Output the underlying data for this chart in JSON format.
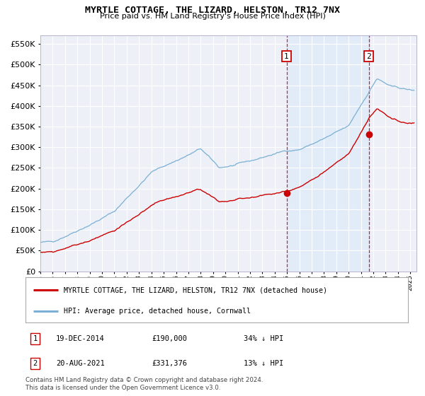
{
  "title": "MYRTLE COTTAGE, THE LIZARD, HELSTON, TR12 7NX",
  "subtitle": "Price paid vs. HM Land Registry's House Price Index (HPI)",
  "legend_line1": "MYRTLE COTTAGE, THE LIZARD, HELSTON, TR12 7NX (detached house)",
  "legend_line2": "HPI: Average price, detached house, Cornwall",
  "sale1_date": "19-DEC-2014",
  "sale1_price": "£190,000",
  "sale1_hpi": "34% ↓ HPI",
  "sale1_year": 2014.96,
  "sale1_value": 190000,
  "sale2_date": "20-AUG-2021",
  "sale2_price": "£331,376",
  "sale2_hpi": "13% ↓ HPI",
  "sale2_year": 2021.63,
  "sale2_value": 331376,
  "red_color": "#cc0000",
  "blue_color": "#7ab0d4",
  "ylim": [
    0,
    570000
  ],
  "yticks": [
    0,
    50000,
    100000,
    150000,
    200000,
    250000,
    300000,
    350000,
    400000,
    450000,
    500000,
    550000
  ],
  "xlim_start": 1995,
  "xlim_end": 2025.5,
  "footer": "Contains HM Land Registry data © Crown copyright and database right 2024.\nThis data is licensed under the Open Government Licence v3.0."
}
